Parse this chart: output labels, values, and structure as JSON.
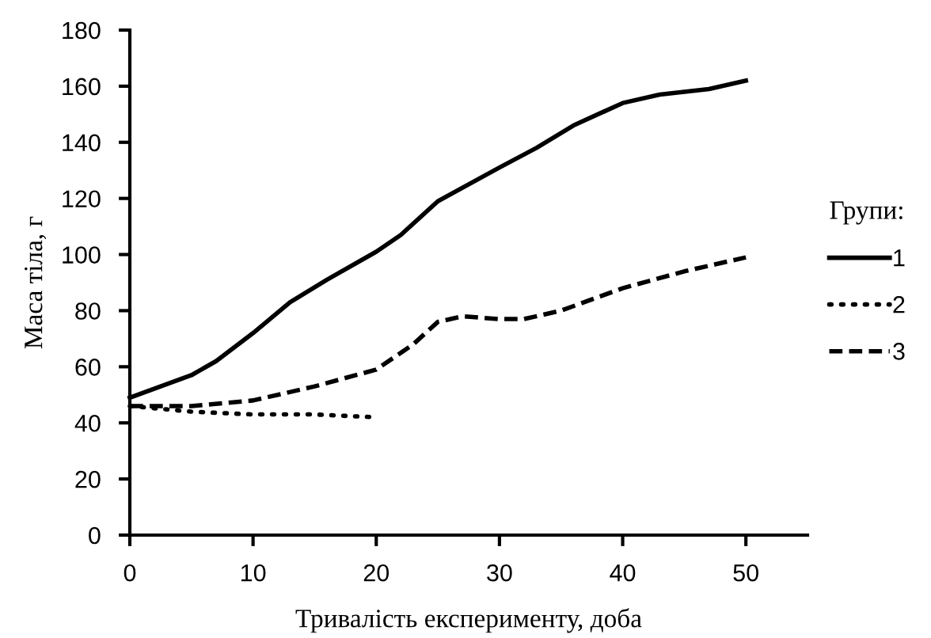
{
  "chart_data": {
    "type": "line",
    "xlabel": "Тривалість експерименту, доба",
    "ylabel": "Маса тіла, г",
    "legend_title": "Групи:",
    "legend": "right",
    "xlim": [
      0,
      55
    ],
    "xticks": [
      0,
      10,
      20,
      30,
      40,
      50
    ],
    "ylim": [
      0,
      180
    ],
    "yticks": [
      0,
      20,
      40,
      60,
      80,
      100,
      120,
      140,
      160,
      180
    ],
    "grid": false,
    "marker": "none",
    "series": [
      {
        "name": "1",
        "color": "#000000",
        "line_style": "solid",
        "x": [
          0,
          5,
          7,
          10,
          13,
          16,
          20,
          22,
          25,
          30,
          33,
          36,
          40,
          43,
          47,
          50
        ],
        "values": [
          49,
          57,
          62,
          72,
          83,
          91,
          101,
          107,
          119,
          131,
          138,
          146,
          154,
          157,
          159,
          162
        ]
      },
      {
        "name": "2",
        "color": "#000000",
        "line_style": "dotted",
        "x": [
          0,
          5,
          10,
          15,
          20
        ],
        "values": [
          46,
          44,
          43,
          43,
          42
        ]
      },
      {
        "name": "3",
        "color": "#000000",
        "line_style": "dashed",
        "x": [
          0,
          5,
          10,
          15,
          20,
          23,
          25,
          27,
          30,
          32,
          35,
          40,
          45,
          50
        ],
        "values": [
          46,
          46,
          48,
          53,
          59,
          68,
          76,
          78,
          77,
          77,
          80,
          88,
          94,
          99
        ]
      }
    ]
  }
}
